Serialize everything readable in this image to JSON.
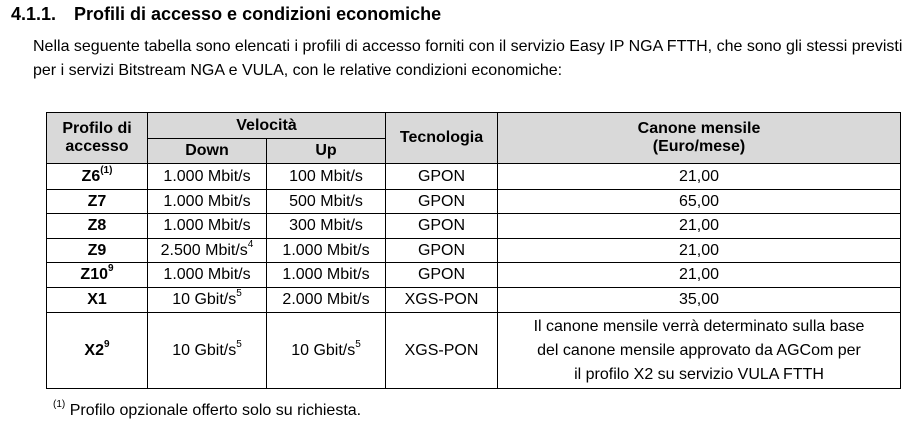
{
  "heading": {
    "number": "4.1.1.",
    "title": "Profili di accesso e condizioni economiche"
  },
  "intro": "Nella seguente tabella sono elencati i profili di accesso forniti con il servizio Easy IP NGA FTTH, che sono gli stessi previsti per i servizi Bitstream NGA e VULA, con le relative condizioni economiche:",
  "table": {
    "headers": {
      "profile_line1": "Profilo di",
      "profile_line2": "accesso",
      "speed": "Velocità",
      "down": "Down",
      "up": "Up",
      "technology": "Tecnologia",
      "fee_line1": "Canone mensile",
      "fee_line2": "(Euro/mese)"
    },
    "rows": [
      {
        "profile": "Z6",
        "profile_sup": "(1)",
        "down": "1.000 Mbit/s",
        "down_sup": "",
        "up": "100 Mbit/s",
        "up_sup": "",
        "tech": "GPON",
        "fee": "21,00"
      },
      {
        "profile": "Z7",
        "profile_sup": "",
        "down": "1.000 Mbit/s",
        "down_sup": "",
        "up": "500 Mbit/s",
        "up_sup": "",
        "tech": "GPON",
        "fee": "65,00"
      },
      {
        "profile": "Z8",
        "profile_sup": "",
        "down": "1.000 Mbit/s",
        "down_sup": "",
        "up": "300 Mbit/s",
        "up_sup": "",
        "tech": "GPON",
        "fee": "21,00"
      },
      {
        "profile": "Z9",
        "profile_sup": "",
        "down": "2.500 Mbit/s",
        "down_sup": "4",
        "up": "1.000 Mbit/s",
        "up_sup": "",
        "tech": "GPON",
        "fee": "21,00"
      },
      {
        "profile": "Z10",
        "profile_sup": "9",
        "down": "1.000 Mbit/s",
        "down_sup": "",
        "up": "1.000 Mbit/s",
        "up_sup": "",
        "tech": "GPON",
        "fee": "21,00"
      },
      {
        "profile": "X1",
        "profile_sup": "",
        "down": "10 Gbit/s",
        "down_sup": "5",
        "up": "2.000 Mbit/s",
        "up_sup": "",
        "tech": "XGS-PON",
        "fee": "35,00"
      }
    ],
    "last_row": {
      "profile": "X2",
      "profile_sup": "9",
      "down": "10 Gbit/s",
      "down_sup": "5",
      "up": "10 Gbit/s",
      "up_sup": "5",
      "tech": "XGS-PON",
      "fee_lines": [
        "Il canone mensile verrà determinato sulla base",
        "del canone mensile approvato da AGCom per",
        "il profilo X2 su servizio VULA FTTH"
      ]
    }
  },
  "footnote": {
    "mark": "(1)",
    "text": "Profilo opzionale offerto solo su richiesta."
  }
}
